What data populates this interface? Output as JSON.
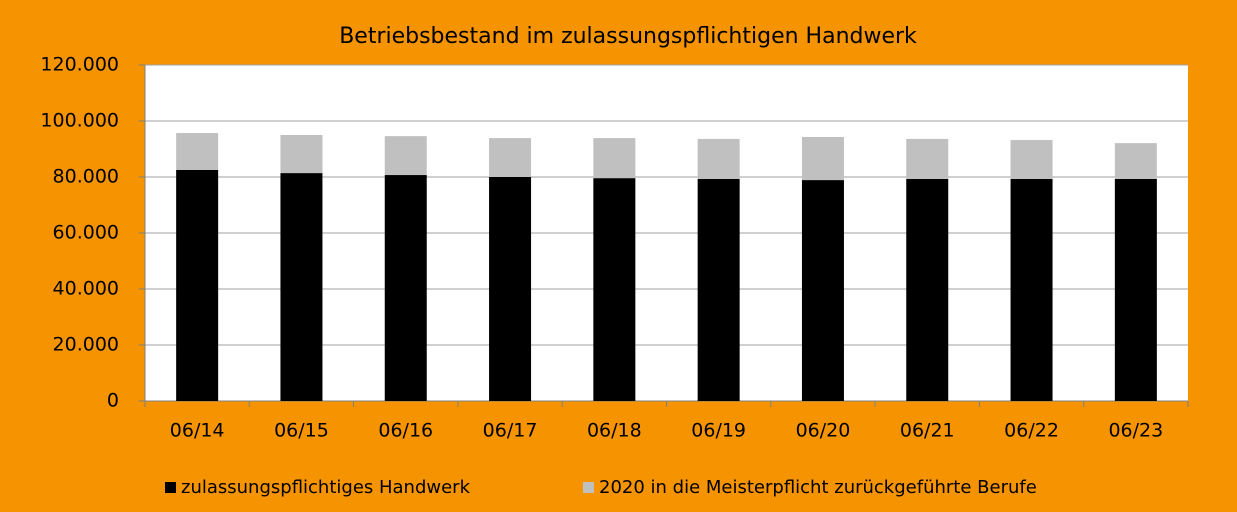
{
  "chart_data": {
    "type": "stacked_bar",
    "title": "Betriebsbestand im zulassungspflichtigen Handwerk",
    "categories": [
      "06/14",
      "06/15",
      "06/16",
      "06/17",
      "06/18",
      "06/19",
      "06/20",
      "06/21",
      "06/22",
      "06/23"
    ],
    "series": [
      {
        "name": "zulassungspflichtiges Handwerk",
        "color": "#000000",
        "values": [
          82500,
          81400,
          80700,
          80000,
          79600,
          79300,
          78900,
          79300,
          79300,
          79300
        ]
      },
      {
        "name": "2020 in die Meisterpflicht zurückgeführte Berufe",
        "color": "#c0c0c0",
        "values": [
          13200,
          13600,
          13900,
          13900,
          14300,
          14300,
          15400,
          14300,
          13900,
          12800
        ]
      }
    ],
    "ylim": [
      0,
      120000
    ],
    "yticks": [
      0,
      {
        "value": 20000,
        "label": "20.000"
      },
      {
        "value": 40000,
        "label": "40.000"
      },
      {
        "value": 60000,
        "label": "60.000"
      },
      {
        "value": 80000,
        "label": "80.000"
      },
      {
        "value": 100000,
        "label": "100.000"
      },
      {
        "value": 120000,
        "label": "120.000"
      }
    ],
    "grid": true,
    "legend": "bottom"
  }
}
